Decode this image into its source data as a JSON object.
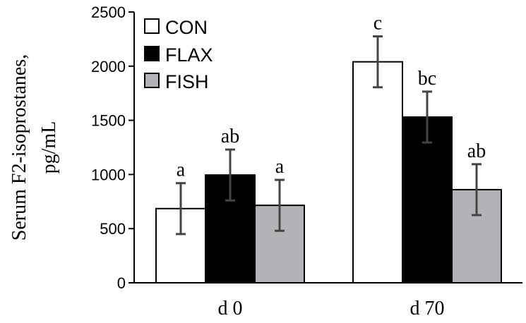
{
  "chart_data": {
    "type": "bar",
    "ylabel_lines": [
      "Serum F2-isoprostanes,",
      "pg/mL"
    ],
    "categories": [
      "d 0",
      "d 70"
    ],
    "ylim": [
      0,
      2500
    ],
    "yticks": [
      0,
      500,
      1000,
      1500,
      2000,
      2500
    ],
    "grid": false,
    "legend_position": "top-left",
    "series": [
      {
        "name": "CON",
        "color": "#ffffff",
        "values": [
          685,
          2040
        ],
        "errors": [
          235,
          235
        ],
        "labels": [
          "a",
          "c"
        ]
      },
      {
        "name": "FLAX",
        "color": "#000000",
        "values": [
          995,
          1530
        ],
        "errors": [
          235,
          235
        ],
        "labels": [
          "ab",
          "bc"
        ]
      },
      {
        "name": "FISH",
        "color": "#b3b3b7",
        "values": [
          715,
          860
        ],
        "errors": [
          235,
          235
        ],
        "labels": [
          "a",
          "ab"
        ]
      }
    ]
  }
}
